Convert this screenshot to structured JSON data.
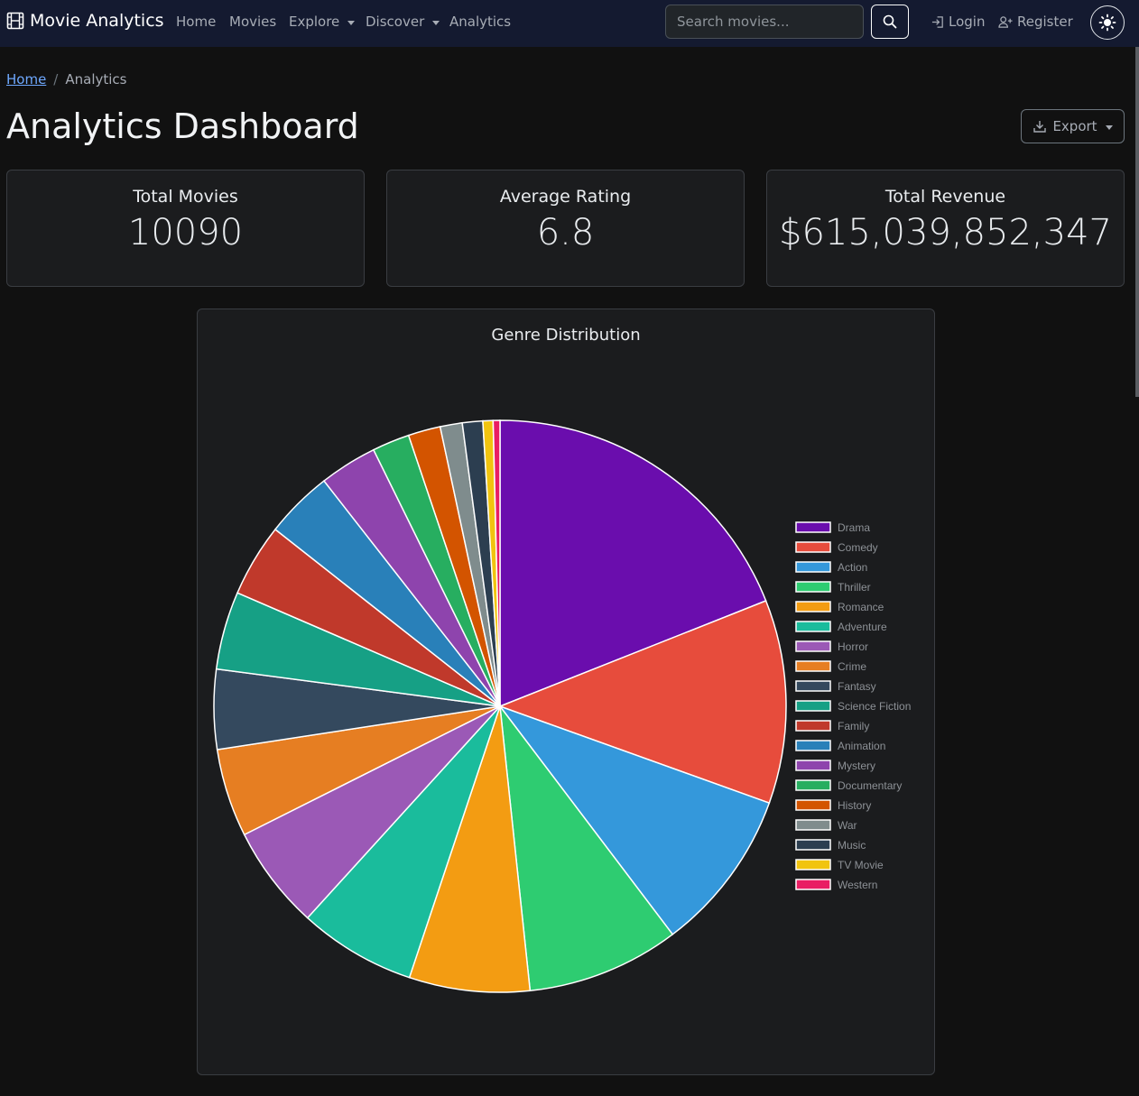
{
  "navbar": {
    "brand": "Movie Analytics",
    "links": [
      "Home",
      "Movies",
      "Explore",
      "Discover",
      "Analytics"
    ],
    "search_placeholder": "Search movies...",
    "login": "Login",
    "register": "Register"
  },
  "breadcrumb": {
    "home": "Home",
    "sep": "/",
    "current": "Analytics"
  },
  "page": {
    "title": "Analytics Dashboard",
    "export_label": "Export"
  },
  "stats": [
    {
      "title": "Total Movies",
      "value": "10090"
    },
    {
      "title": "Average Rating",
      "value": "6.8"
    },
    {
      "title": "Total Revenue",
      "value": "$615,039,852,347"
    }
  ],
  "chart_data": {
    "type": "pie",
    "title": "Genre Distribution",
    "legend_position": "right",
    "categories": [
      "Drama",
      "Comedy",
      "Action",
      "Thriller",
      "Romance",
      "Adventure",
      "Horror",
      "Crime",
      "Fantasy",
      "Science Fiction",
      "Family",
      "Animation",
      "Mystery",
      "Documentary",
      "History",
      "War",
      "Music",
      "TV Movie",
      "Western"
    ],
    "values": [
      19.8,
      12.0,
      9.6,
      9.0,
      7.1,
      6.9,
      6.1,
      5.2,
      4.7,
      4.6,
      4.3,
      4.0,
      3.4,
      2.2,
      1.9,
      1.3,
      1.2,
      0.6,
      0.4
    ],
    "colors": [
      "#6a0dad",
      "#e74c3c",
      "#3498db",
      "#2ecc71",
      "#f39c12",
      "#1abc9c",
      "#9b59b6",
      "#e67e22",
      "#34495e",
      "#16a085",
      "#c0392b",
      "#2980b9",
      "#8e44ad",
      "#27ae60",
      "#d35400",
      "#7f8c8d",
      "#2c3e50",
      "#f1c40f",
      "#e91e63"
    ]
  }
}
